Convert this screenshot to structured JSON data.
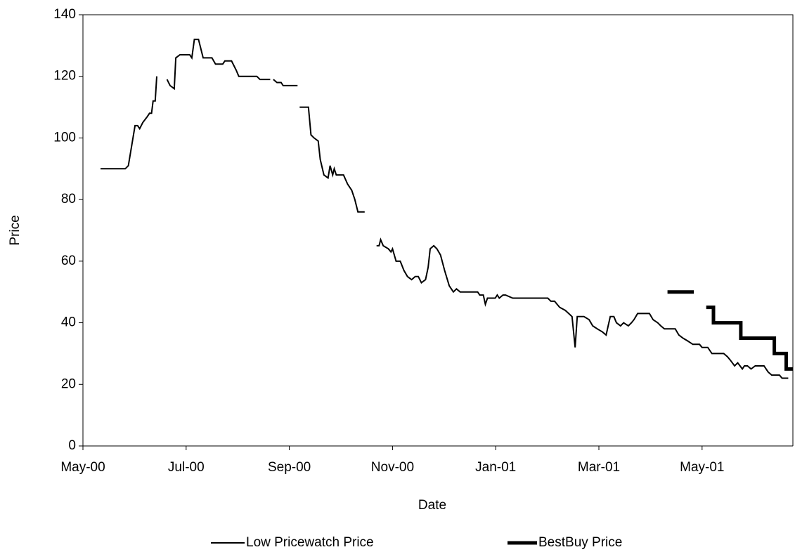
{
  "chart_data": {
    "type": "line",
    "xlabel": "Date",
    "ylabel": "Price",
    "xlim": [
      0,
      13.76
    ],
    "ylim": [
      0,
      140
    ],
    "xticks": [
      {
        "value": 0,
        "label": "May-00"
      },
      {
        "value": 2,
        "label": "Jul-00"
      },
      {
        "value": 4,
        "label": "Sep-00"
      },
      {
        "value": 6,
        "label": "Nov-00"
      },
      {
        "value": 8,
        "label": "Jan-01"
      },
      {
        "value": 10,
        "label": "Mar-01"
      },
      {
        "value": 12,
        "label": "May-01"
      }
    ],
    "yticks": [
      0,
      20,
      40,
      60,
      80,
      100,
      120,
      140
    ],
    "legend": "bottom",
    "series": [
      {
        "name": "Low Pricewatch Price",
        "color": "#000000",
        "width": 2,
        "x": [
          0.34,
          0.82,
          0.88,
          1.01,
          1.06,
          1.1,
          1.16,
          1.25,
          1.29,
          1.33,
          1.36,
          1.4,
          1.43,
          1.5,
          1.63,
          1.69,
          1.77,
          1.8,
          1.88,
          2.07,
          2.11,
          2.16,
          2.24,
          2.33,
          2.5,
          2.57,
          2.71,
          2.75,
          2.88,
          2.97,
          3.02,
          3.37,
          3.43,
          3.63,
          3.66,
          3.69,
          3.76,
          3.84,
          3.88,
          4.16,
          4.18,
          4.2,
          4.37,
          4.42,
          4.48,
          4.56,
          4.6,
          4.67,
          4.75,
          4.79,
          4.84,
          4.87,
          4.91,
          5.05,
          5.13,
          5.21,
          5.27,
          5.33,
          5.46,
          5.55,
          5.69,
          5.74,
          5.77,
          5.82,
          5.92,
          5.97,
          6.0,
          6.07,
          6.15,
          6.22,
          6.29,
          6.37,
          6.44,
          6.5,
          6.56,
          6.64,
          6.69,
          6.73,
          6.8,
          6.86,
          6.93,
          7.01,
          7.1,
          7.18,
          7.24,
          7.31,
          7.65,
          7.69,
          7.76,
          7.8,
          7.84,
          7.99,
          8.03,
          8.07,
          8.14,
          8.19,
          8.33,
          9.01,
          9.07,
          9.14,
          9.24,
          9.35,
          9.48,
          9.54,
          9.58,
          9.71,
          9.81,
          9.88,
          9.97,
          10.07,
          10.14,
          10.18,
          10.22,
          10.29,
          10.34,
          10.42,
          10.48,
          10.57,
          10.63,
          10.68,
          10.75,
          10.98,
          11.05,
          11.14,
          11.2,
          11.27,
          11.48,
          11.55,
          11.63,
          11.73,
          11.82,
          11.95,
          12.0,
          12.11,
          12.19,
          12.42,
          12.49,
          12.54,
          12.63,
          12.69,
          12.78,
          12.82,
          12.88,
          12.95,
          13.03,
          13.2,
          13.28,
          13.35,
          13.5,
          13.55,
          13.67
        ],
        "values": [
          90,
          90,
          91,
          104,
          104,
          103,
          105,
          107,
          108,
          108,
          112,
          112,
          120,
          null,
          119,
          117,
          116,
          126,
          127,
          127,
          126,
          132,
          132,
          126,
          126,
          124,
          124,
          125,
          125,
          122,
          120,
          120,
          119,
          119,
          null,
          119,
          118,
          118,
          117,
          117,
          null,
          110,
          110,
          101,
          100,
          99,
          93,
          88,
          87,
          91,
          88,
          90,
          88,
          88,
          85,
          83,
          80,
          76,
          76,
          null,
          65,
          65,
          67,
          65,
          64,
          63,
          64,
          60,
          60,
          57,
          55,
          54,
          55,
          55,
          53,
          54,
          58,
          64,
          65,
          64,
          62,
          57,
          52,
          50,
          51,
          50,
          50,
          49,
          49,
          46,
          48,
          48,
          49,
          48,
          49,
          49,
          48,
          48,
          47,
          47,
          45,
          44,
          42,
          32,
          42,
          42,
          41,
          39,
          38,
          37,
          36,
          39,
          42,
          42,
          40,
          39,
          40,
          39,
          40,
          41,
          43,
          43,
          41,
          40,
          39,
          38,
          38,
          36,
          35,
          34,
          33,
          33,
          32,
          32,
          30,
          30,
          29,
          28,
          26,
          27,
          25,
          26,
          26,
          25,
          26,
          26,
          24,
          23,
          23,
          22,
          22
        ]
      },
      {
        "name": "BestBuy Price",
        "color": "#000000",
        "width": 5,
        "x": [
          11.33,
          11.84,
          11.96,
          12.08,
          12.22,
          12.22,
          12.75,
          12.75,
          13.4,
          13.4,
          13.63,
          13.63,
          13.76
        ],
        "values": [
          50,
          50,
          null,
          45,
          45,
          40,
          40,
          35,
          35,
          30,
          30,
          25,
          25
        ]
      }
    ]
  }
}
